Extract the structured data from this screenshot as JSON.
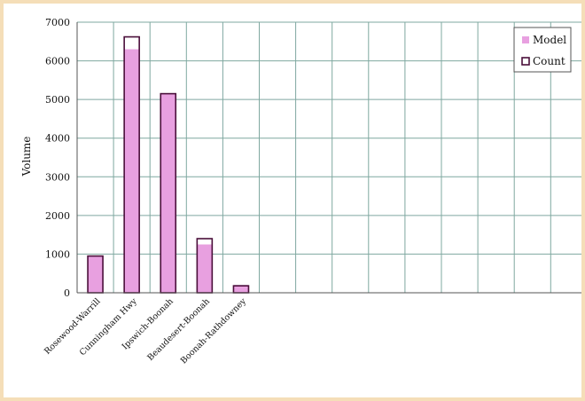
{
  "chart_data": {
    "type": "bar",
    "title": "",
    "xlabel": "",
    "ylabel": "Volume",
    "ylim": [
      0,
      7000
    ],
    "yticks": [
      0,
      1000,
      2000,
      3000,
      4000,
      5000,
      6000,
      7000
    ],
    "grid": true,
    "legend_position": "top-right",
    "categories": [
      "Rosewood-Warrill",
      "Cunningham Hwy",
      "Ipswich-Boonah",
      "Beaudesert-Boonah",
      "Boonah-Rathdowney"
    ],
    "n_slots": 15,
    "series": [
      {
        "name": "Model",
        "values": [
          950,
          6300,
          5150,
          1250,
          200
        ],
        "color": "#e8a0e0"
      },
      {
        "name": "Count",
        "values": [
          950,
          6620,
          5150,
          1400,
          180
        ],
        "color": "#4a0f3a"
      }
    ]
  }
}
